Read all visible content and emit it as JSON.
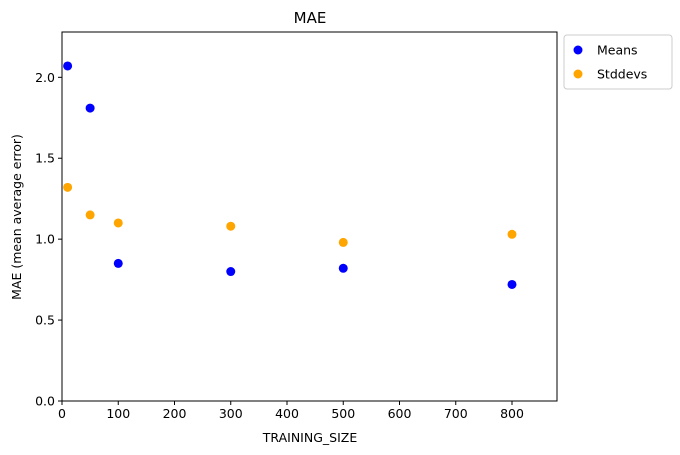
{
  "chart_data": {
    "type": "scatter",
    "title": "MAE",
    "xlabel": "TRAINING_SIZE",
    "ylabel": "MAE (mean average error)",
    "xlim": [
      0,
      880
    ],
    "ylim": [
      0,
      2.28
    ],
    "xticks": [
      0,
      100,
      200,
      300,
      400,
      500,
      600,
      700,
      800
    ],
    "yticks": [
      0.0,
      0.5,
      1.0,
      1.5,
      2.0
    ],
    "grid": false,
    "legend": "outside-top-right",
    "series": [
      {
        "name": "Means",
        "color": "#0000ff",
        "x": [
          10,
          50,
          100,
          300,
          500,
          800
        ],
        "y": [
          2.07,
          1.81,
          0.85,
          0.8,
          0.82,
          0.72
        ]
      },
      {
        "name": "Stddevs",
        "color": "#ffa500",
        "x": [
          10,
          50,
          100,
          300,
          500,
          800
        ],
        "y": [
          1.32,
          1.15,
          1.1,
          1.08,
          0.98,
          1.03
        ]
      }
    ]
  }
}
